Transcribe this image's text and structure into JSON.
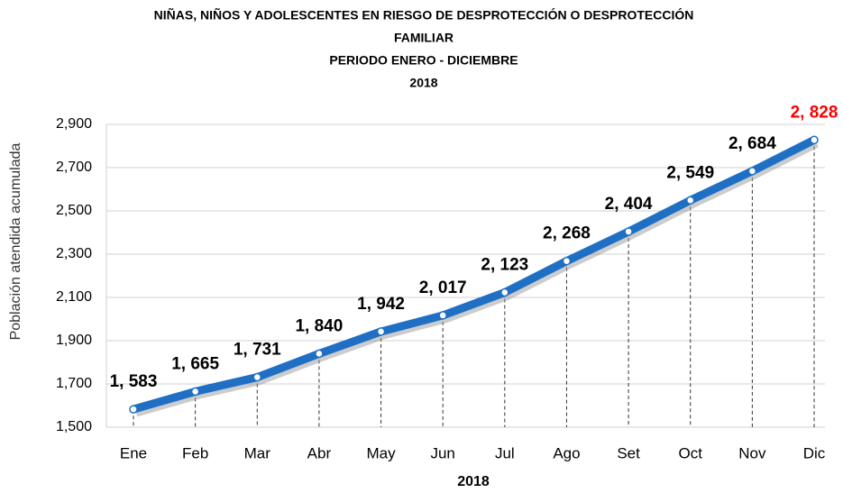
{
  "chart_data": {
    "type": "line",
    "title": [
      "NIÑAS, NIÑOS Y ADOLESCENTES EN RIESGO DE DESPROTECCIÓN O DESPROTECCIÓN",
      "FAMILIAR",
      "PERIODO ENERO - DICIEMBRE",
      "2018"
    ],
    "y_label": "Población atendida acumulada",
    "x_label": "2018",
    "categories": [
      "Ene",
      "Feb",
      "Mar",
      "Abr",
      "May",
      "Jun",
      "Jul",
      "Ago",
      "Set",
      "Oct",
      "Nov",
      "Dic"
    ],
    "values": [
      1583,
      1665,
      1731,
      1840,
      1942,
      2017,
      2123,
      2268,
      2404,
      2549,
      2684,
      2828
    ],
    "value_labels": [
      "1, 583",
      "1, 665",
      "1, 731",
      "1, 840",
      "1, 942",
      "2, 017",
      "2, 123",
      "2, 268",
      "2, 404",
      "2, 549",
      "2, 684",
      "2, 828"
    ],
    "value_label_colors": [
      "#000000",
      "#000000",
      "#000000",
      "#000000",
      "#000000",
      "#000000",
      "#000000",
      "#000000",
      "#000000",
      "#000000",
      "#000000",
      "#ff0000"
    ],
    "color": "#1f6fc4",
    "ylim": [
      1500,
      2900
    ],
    "yticks": [
      {
        "value": 1500,
        "label": "1,500"
      },
      {
        "value": 1700,
        "label": "1,700"
      },
      {
        "value": 1900,
        "label": "1,900"
      },
      {
        "value": 2100,
        "label": "2,100"
      },
      {
        "value": 2300,
        "label": "2,300"
      },
      {
        "value": 2500,
        "label": "2,500"
      },
      {
        "value": 2700,
        "label": "2,700"
      },
      {
        "value": 2900,
        "label": "2,900"
      }
    ],
    "grid": true
  }
}
